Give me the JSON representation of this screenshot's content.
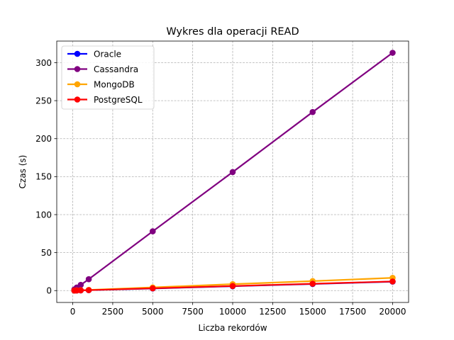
{
  "chart_data": {
    "type": "line",
    "title": "Wykres dla operacji READ",
    "xlabel": "Liczba rekordów",
    "ylabel": "Czas (s)",
    "xlim": [
      -1000,
      21000
    ],
    "ylim": [
      -15.6,
      328.4
    ],
    "xticks": [
      0,
      2500,
      5000,
      7500,
      10000,
      12500,
      15000,
      17500,
      20000
    ],
    "yticks": [
      0,
      50,
      100,
      150,
      200,
      250,
      300
    ],
    "grid": true,
    "legend_position": "top-left",
    "x": [
      100,
      250,
      500,
      1000,
      5000,
      10000,
      15000,
      20000
    ],
    "series": [
      {
        "name": "Oracle",
        "color": "#0000ff",
        "values": [
          0.1,
          0.2,
          0.3,
          0.6,
          2.8,
          5.8,
          8.7,
          11.8
        ]
      },
      {
        "name": "Cassandra",
        "color": "#800080",
        "values": [
          1.5,
          4.0,
          7.5,
          15.0,
          78.0,
          156.0,
          235.0,
          313.0
        ]
      },
      {
        "name": "MongoDB",
        "color": "#ffa500",
        "values": [
          0.1,
          0.3,
          0.5,
          0.9,
          4.2,
          8.5,
          12.5,
          16.8
        ]
      },
      {
        "name": "PostgreSQL",
        "color": "#ff0000",
        "values": [
          0.1,
          0.2,
          0.3,
          0.6,
          3.0,
          6.0,
          9.0,
          12.0
        ]
      }
    ]
  }
}
